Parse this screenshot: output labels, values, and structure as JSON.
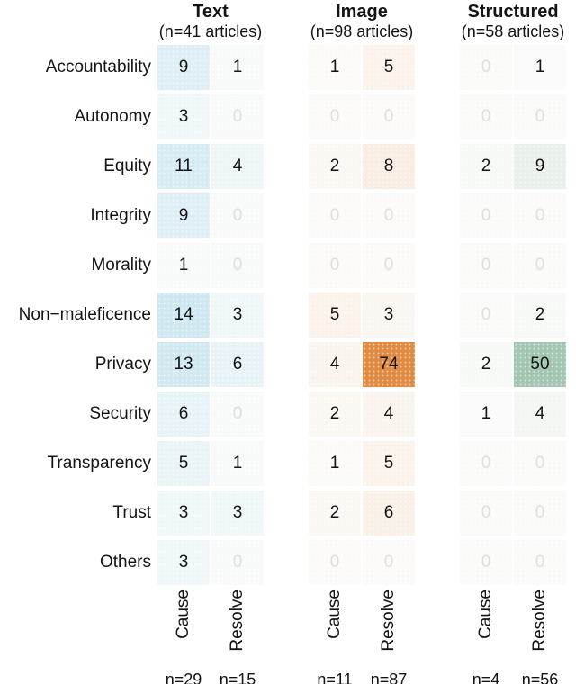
{
  "chart_data": {
    "type": "heatmap",
    "title": "",
    "layout": {
      "grid": "off",
      "row_labels": "right-aligned left side",
      "column_labels": "rotated 90deg bottom"
    },
    "scale_max": 74,
    "base_cell_color": "#fcfcfb",
    "value_text_color": "#141414",
    "zero_text_color": "#dedede",
    "rows": [
      "Accountability",
      "Autonomy",
      "Equity",
      "Integrity",
      "Morality",
      "Non−maleficence",
      "Privacy",
      "Security",
      "Transparency",
      "Trust",
      "Others"
    ],
    "groups": [
      {
        "name": "Text",
        "subtitle": "(n=41 articles)",
        "accent_color": "#2e9cca",
        "columns": [
          "Cause",
          "Resolve"
        ],
        "column_counts": [
          "n=29",
          "n=15"
        ],
        "values": [
          [
            9,
            1
          ],
          [
            3,
            0
          ],
          [
            11,
            4
          ],
          [
            9,
            0
          ],
          [
            1,
            0
          ],
          [
            14,
            3
          ],
          [
            13,
            6
          ],
          [
            6,
            0
          ],
          [
            5,
            1
          ],
          [
            3,
            3
          ],
          [
            3,
            0
          ]
        ]
      },
      {
        "name": "Image",
        "subtitle": "(n=98 articles)",
        "accent_color": "#e08b43",
        "columns": [
          "Cause",
          "Resolve"
        ],
        "column_counts": [
          "n=11",
          "n=87"
        ],
        "values": [
          [
            1,
            5
          ],
          [
            0,
            0
          ],
          [
            2,
            8
          ],
          [
            0,
            0
          ],
          [
            0,
            0
          ],
          [
            5,
            3
          ],
          [
            4,
            74
          ],
          [
            2,
            4
          ],
          [
            1,
            5
          ],
          [
            2,
            6
          ],
          [
            0,
            0
          ]
        ]
      },
      {
        "name": "Structured",
        "subtitle": "(n=58 articles)",
        "accent_color": "#7daf93",
        "columns": [
          "Cause",
          "Resolve"
        ],
        "column_counts": [
          "n=4",
          "n=56"
        ],
        "values": [
          [
            0,
            1
          ],
          [
            0,
            0
          ],
          [
            2,
            9
          ],
          [
            0,
            0
          ],
          [
            0,
            0
          ],
          [
            0,
            2
          ],
          [
            2,
            50
          ],
          [
            1,
            4
          ],
          [
            0,
            0
          ],
          [
            0,
            0
          ],
          [
            0,
            0
          ]
        ]
      }
    ]
  }
}
